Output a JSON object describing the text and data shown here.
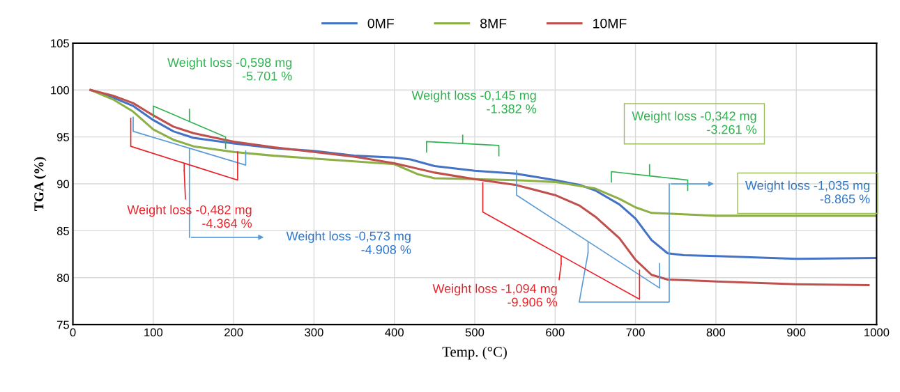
{
  "chart_data": {
    "type": "line",
    "xlabel": "Temp. (°C)",
    "ylabel": "TGA (%)",
    "xlim": [
      0,
      1000
    ],
    "ylim": [
      75,
      105
    ],
    "xticks": [
      0,
      100,
      200,
      300,
      400,
      500,
      600,
      700,
      800,
      900,
      1000
    ],
    "yticks": [
      75,
      80,
      85,
      90,
      95,
      100,
      105
    ],
    "grid": true,
    "legend": "top",
    "line_style": "solid",
    "marker": "none",
    "series": [
      {
        "name": "0MF",
        "color": "#4472c4",
        "x": [
          22,
          50,
          75,
          100,
          125,
          150,
          200,
          250,
          300,
          350,
          400,
          420,
          450,
          500,
          550,
          600,
          630,
          650,
          680,
          700,
          720,
          740,
          760,
          800,
          900,
          1000
        ],
        "values": [
          100,
          99.2,
          98.3,
          96.8,
          95.6,
          94.9,
          94.3,
          93.8,
          93.5,
          93.0,
          92.8,
          92.6,
          91.9,
          91.4,
          91.1,
          90.4,
          89.9,
          89.3,
          87.8,
          86.3,
          84.0,
          82.6,
          82.4,
          82.3,
          82.0,
          82.1
        ]
      },
      {
        "name": "8MF",
        "color": "#8db046",
        "x": [
          22,
          50,
          75,
          100,
          125,
          150,
          200,
          250,
          300,
          350,
          400,
          430,
          450,
          500,
          550,
          600,
          650,
          680,
          700,
          720,
          750,
          800,
          900,
          1000
        ],
        "values": [
          100,
          99.0,
          97.7,
          95.8,
          94.7,
          94.0,
          93.4,
          93.0,
          92.7,
          92.4,
          92.1,
          91.0,
          90.6,
          90.5,
          90.4,
          90.2,
          89.5,
          88.4,
          87.5,
          86.9,
          86.8,
          86.6,
          86.6,
          86.6
        ]
      },
      {
        "name": "10MF",
        "color": "#c0504d",
        "x": [
          22,
          50,
          75,
          100,
          125,
          150,
          200,
          250,
          300,
          350,
          400,
          450,
          500,
          550,
          600,
          630,
          650,
          680,
          700,
          720,
          740,
          800,
          900,
          990
        ],
        "values": [
          100,
          99.4,
          98.6,
          97.3,
          96.1,
          95.4,
          94.5,
          93.9,
          93.4,
          92.9,
          92.2,
          91.2,
          90.5,
          89.9,
          88.8,
          87.7,
          86.5,
          84.2,
          81.9,
          80.3,
          79.8,
          79.6,
          79.3,
          79.2
        ]
      }
    ],
    "annotations": [
      "Weight loss -0,598 mg\n-5.701 %",
      "Weight loss -0,145 mg\n-1.382 %",
      "Weight loss -0,342 mg\n-3.261 %",
      "Weight loss -1,035 mg\n-8.865 %",
      "Weight loss -0,482 mg\n-4.364 %",
      "Weight loss -0,573 mg\n-4.908 %",
      "Weight loss -1,094 mg\n-9.906 %"
    ]
  }
}
